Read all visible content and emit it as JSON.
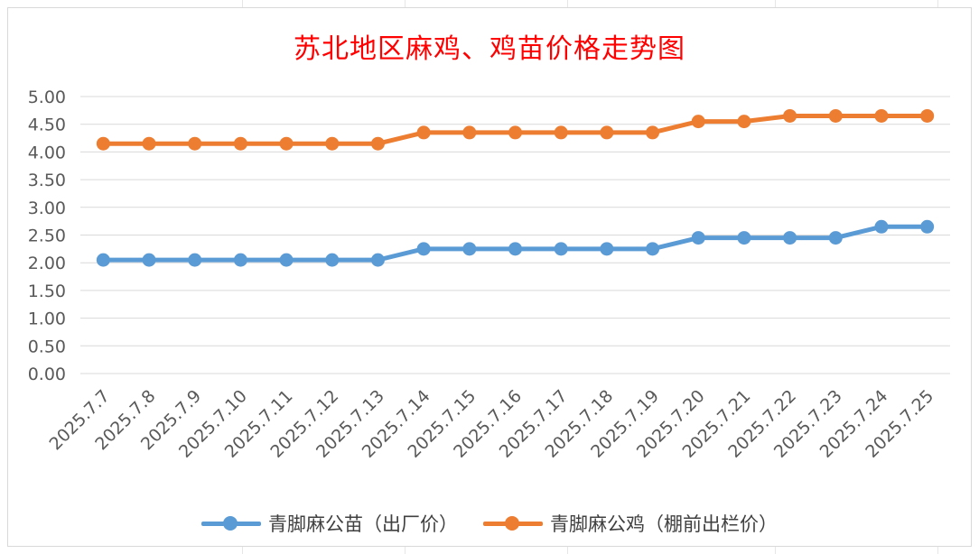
{
  "chart_data": {
    "type": "line",
    "title": "苏北地区麻鸡、鸡苗价格走势图",
    "categories": [
      "2025.7.7",
      "2025.7.8",
      "2025.7.9",
      "2025.7.10",
      "2025.7.11",
      "2025.7.12",
      "2025.7.13",
      "2025.7.14",
      "2025.7.15",
      "2025.7.16",
      "2025.7.17",
      "2025.7.18",
      "2025.7.19",
      "2025.7.20",
      "2025.7.21",
      "2025.7.22",
      "2025.7.23",
      "2025.7.24",
      "2025.7.25"
    ],
    "series": [
      {
        "name": "青脚麻公苗（出厂价）",
        "color": "#5b9bd5",
        "values": [
          2.05,
          2.05,
          2.05,
          2.05,
          2.05,
          2.05,
          2.05,
          2.25,
          2.25,
          2.25,
          2.25,
          2.25,
          2.25,
          2.45,
          2.45,
          2.45,
          2.45,
          2.65,
          2.65
        ]
      },
      {
        "name": "青脚麻公鸡（棚前出栏价）",
        "color": "#ed7d31",
        "values": [
          4.15,
          4.15,
          4.15,
          4.15,
          4.15,
          4.15,
          4.15,
          4.35,
          4.35,
          4.35,
          4.35,
          4.35,
          4.35,
          4.55,
          4.55,
          4.65,
          4.65,
          4.65,
          4.65
        ]
      }
    ],
    "ylim": [
      0,
      5
    ],
    "yticks": [
      "0.00",
      "0.50",
      "1.00",
      "1.50",
      "2.00",
      "2.50",
      "3.00",
      "3.50",
      "4.00",
      "4.50",
      "5.00"
    ],
    "grid": true,
    "legend_position": "bottom"
  }
}
